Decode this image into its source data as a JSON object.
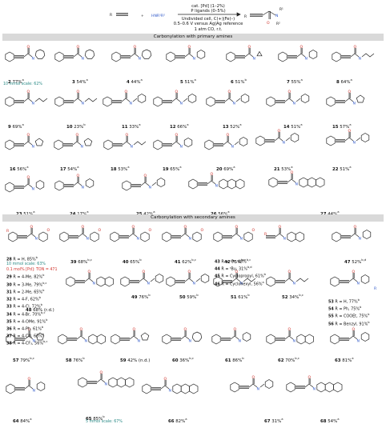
{
  "scheme": {
    "reactant_r": "R",
    "plus": "+",
    "amine": "HNR¹R²",
    "conditions_top": [
      "cat. [Pd] (1–2%)",
      "P ligands (0–5%)"
    ],
    "conditions_bottom": [
      "Undivided cell, C(+)|Fe(–)",
      "0.5–0.6 V versus Ag|Ag reference",
      "1 atm CO, r.t."
    ],
    "product_labels": {
      "n": "N",
      "r1": "R¹",
      "r2": "R²",
      "o": "O",
      "r": "R"
    }
  },
  "sections": {
    "primary": "Carbonylation with primary amines",
    "secondary": "Carbonylation with secondary amines"
  },
  "primary_entries": [
    {
      "id": "2",
      "yield": "77%",
      "sup": "a"
    },
    {
      "id": "3",
      "yield": "54%",
      "sup": "a"
    },
    {
      "id": "4",
      "yield": "44%",
      "sup": "a"
    },
    {
      "id": "5",
      "yield": "51%",
      "sup": "a"
    },
    {
      "id": "6",
      "yield": "51%",
      "sup": "b"
    },
    {
      "id": "7",
      "yield": "55%",
      "sup": "a"
    },
    {
      "id": "8",
      "yield": "64%",
      "sup": "a"
    },
    {
      "id": "9",
      "yield": "69%",
      "sup": "a"
    },
    {
      "id": "10",
      "yield": "23%",
      "sup": "b"
    },
    {
      "id": "11",
      "yield": "33%",
      "sup": "a"
    },
    {
      "id": "12",
      "yield": "66%",
      "sup": "a"
    },
    {
      "id": "13",
      "yield": "52%",
      "sup": "a"
    },
    {
      "id": "14",
      "yield": "51%",
      "sup": "a"
    },
    {
      "id": "15",
      "yield": "57%",
      "sup": "a"
    },
    {
      "id": "16",
      "yield": "56%",
      "sup": "a"
    },
    {
      "id": "17",
      "yield": "54%",
      "sup": "a"
    },
    {
      "id": "18",
      "yield": "53%",
      "sup": "a"
    },
    {
      "id": "19",
      "yield": "65%",
      "sup": "a"
    },
    {
      "id": "20",
      "yield": "69%",
      "sup": "a"
    },
    {
      "id": "21",
      "yield": "53%",
      "sup": "a"
    },
    {
      "id": "22",
      "yield": "51%",
      "sup": "a"
    },
    {
      "id": "23",
      "yield": "51%",
      "sup": "a"
    },
    {
      "id": "24",
      "yield": "17%",
      "sup": "a"
    },
    {
      "id": "25",
      "yield": "42%",
      "sup": "a"
    },
    {
      "id": "26",
      "yield": "56%",
      "sup": "a"
    },
    {
      "id": "27",
      "yield": "44%",
      "sup": "a"
    }
  ],
  "notes": {
    "mmol10_2": "10 mmol scale: 62%",
    "mmol10_28": "10 mmol scale: 63%",
    "ton_28": "0.1 mol% [Pd]: TON = 471",
    "mmol5_65": "5 mmol scale: 67%"
  },
  "series_28_38": [
    {
      "id": "28",
      "text": "R = H, 85%",
      "sup": "b"
    },
    {
      "id": "29",
      "text": "R = 4-Me, 82%",
      "sup": "b"
    },
    {
      "id": "30",
      "text": "R = 3-Me, 79%",
      "sup": "b,c"
    },
    {
      "id": "31",
      "text": "R = 2-Me, 65%",
      "sup": "b"
    },
    {
      "id": "32",
      "text": "R = 4-F, 62%",
      "sup": "b"
    },
    {
      "id": "33",
      "text": "R = 4-Cl, 72%",
      "sup": "b"
    },
    {
      "id": "34",
      "text": "R = 4-Br, 70%",
      "sup": "b,c"
    },
    {
      "id": "35",
      "text": "R = 4-OMe, 91%",
      "sup": "b"
    },
    {
      "id": "36",
      "text": "R = 4-Ph, 61%",
      "sup": "b"
    },
    {
      "id": "37",
      "text": "R = 4-CN, 63%",
      "sup": "b"
    },
    {
      "id": "38",
      "text": "R = 4-CF₃, 56%",
      "sup": "b,c"
    }
  ],
  "series_43_46": [
    {
      "id": "43",
      "text": "R = ⁿPr, 48%",
      "sup": "b,c"
    },
    {
      "id": "44",
      "text": "R = ᵗBu, 31%",
      "sup": "b,d"
    },
    {
      "id": "45",
      "text": "R = Cyclopropyl, 61%",
      "sup": "b"
    },
    {
      "id": "46",
      "text": "R = Cyclohexyl, 56%",
      "sup": "a"
    }
  ],
  "series_53_56": [
    {
      "id": "53",
      "text": "R = H, 77%",
      "sup": "b"
    },
    {
      "id": "54",
      "text": "R = Ph, 75%",
      "sup": "b"
    },
    {
      "id": "55",
      "text": "R = COOEt, 75%",
      "sup": "b"
    },
    {
      "id": "56",
      "text": "R = Benzyl, 91%",
      "sup": "b"
    }
  ],
  "secondary_entries": [
    {
      "id": "39",
      "yield": "68%",
      "sup": "b,c"
    },
    {
      "id": "40",
      "yield": "65%",
      "sup": "b"
    },
    {
      "id": "41",
      "yield": "62%",
      "sup": "b,c"
    },
    {
      "id": "42",
      "yield": "75%",
      "sup": "b,c"
    },
    {
      "id": "47",
      "yield": "52%",
      "sup": "b,d"
    },
    {
      "id": "48",
      "yield": "68%",
      "sup": "",
      "tail": " (r.d.)"
    },
    {
      "id": "49",
      "yield": "76%",
      "sup": "b"
    },
    {
      "id": "50",
      "yield": "59%",
      "sup": "b"
    },
    {
      "id": "51",
      "yield": "61%",
      "sup": "b"
    },
    {
      "id": "52",
      "yield": "34%",
      "sup": "b,c"
    },
    {
      "id": "57",
      "yield": "79%",
      "sup": "b,c"
    },
    {
      "id": "58",
      "yield": "76%",
      "sup": "b"
    },
    {
      "id": "59",
      "yield": "42%",
      "sup": "",
      "tail": " (n.d.)"
    },
    {
      "id": "60",
      "yield": "36%",
      "sup": "b,c"
    },
    {
      "id": "61",
      "yield": "86%",
      "sup": "b"
    },
    {
      "id": "62",
      "yield": "70%",
      "sup": "b,c"
    },
    {
      "id": "63",
      "yield": "81%",
      "sup": "a"
    },
    {
      "id": "64",
      "yield": "84%",
      "sup": "a"
    },
    {
      "id": "65",
      "yield": "85%",
      "sup": "b"
    },
    {
      "id": "66",
      "yield": "82%",
      "sup": "a"
    },
    {
      "id": "67",
      "yield": "31%",
      "sup": "a"
    },
    {
      "id": "68",
      "yield": "54%",
      "sup": "a"
    }
  ],
  "atoms": {
    "o": "O",
    "n": "N",
    "h": "H",
    "s": "S",
    "f3c": "F₃C",
    "nc": "NC",
    "meo": "MeO",
    "ome": "OMe",
    "cf3": "CF₃",
    "cl": "Cl",
    "ho": "HO",
    "oh": "OH",
    "r": "R",
    "ph": "Ph"
  },
  "colors": {
    "amide_o": "#d0342c",
    "amine_n": "#2d57c8",
    "banner": "#d9d9d9",
    "teal_note": "#2a8a86",
    "red_note": "#d0342c"
  }
}
